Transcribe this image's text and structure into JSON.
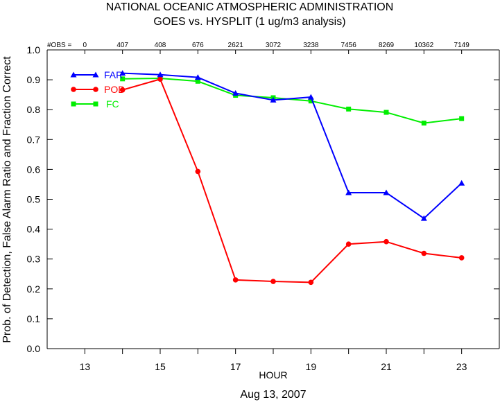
{
  "chart_data": {
    "type": "line",
    "title": "NATIONAL OCEANIC ATMOSPHERIC ADMINISTRATION",
    "subtitle": "GOES vs. HYSPLIT  (1 ug/m3 analysis)",
    "xlabel": "HOUR",
    "ylabel": "Prob. of Detection, False Alarm Ratio and Fraction Correct",
    "footer": "Aug 13, 2007",
    "obs_label": "#OBS =",
    "xlim": [
      12,
      24
    ],
    "ylim": [
      0,
      1
    ],
    "x_ticks": [
      13,
      15,
      17,
      19,
      21,
      23
    ],
    "y_ticks": [
      "0.0",
      "0.1",
      "0.2",
      "0.3",
      "0.4",
      "0.5",
      "0.6",
      "0.7",
      "0.8",
      "0.9",
      "1.0"
    ],
    "obs": [
      {
        "x": 13,
        "label": "0"
      },
      {
        "x": 14,
        "label": "407"
      },
      {
        "x": 15,
        "label": "408"
      },
      {
        "x": 16,
        "label": "676"
      },
      {
        "x": 17,
        "label": "2621"
      },
      {
        "x": 18,
        "label": "3072"
      },
      {
        "x": 19,
        "label": "3238"
      },
      {
        "x": 20,
        "label": "7456"
      },
      {
        "x": 21,
        "label": "8269"
      },
      {
        "x": 22,
        "label": "10362"
      },
      {
        "x": 23,
        "label": "7149"
      }
    ],
    "x": [
      14,
      15,
      16,
      17,
      18,
      19,
      20,
      21,
      22,
      23
    ],
    "legend_placement": "top-left",
    "series": [
      {
        "name": "FAR",
        "color": "#0000ff",
        "marker": "triangle",
        "values": [
          0.922,
          0.917,
          0.908,
          0.855,
          0.832,
          0.842,
          0.522,
          0.522,
          0.436,
          0.554
        ]
      },
      {
        "name": "POD",
        "color": "#ff0000",
        "marker": "circle",
        "values": [
          0.866,
          0.902,
          0.593,
          0.23,
          0.225,
          0.222,
          0.35,
          0.358,
          0.319,
          0.304
        ]
      },
      {
        "name": "FC",
        "color": "#00ee00",
        "marker": "square",
        "values": [
          0.903,
          0.905,
          0.895,
          0.848,
          0.84,
          0.829,
          0.802,
          0.791,
          0.755,
          0.77
        ]
      }
    ]
  }
}
